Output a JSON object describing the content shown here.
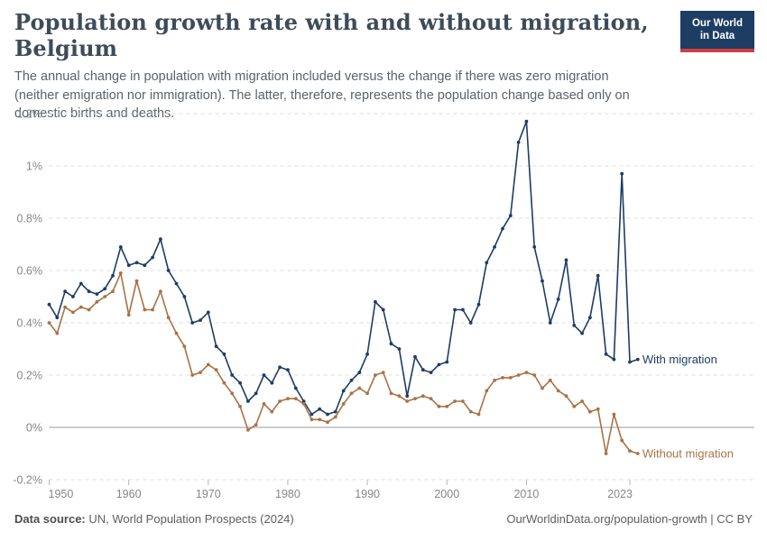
{
  "header": {
    "title": "Population growth rate with and without migration, Belgium",
    "subtitle": "The annual change in population with migration included versus the change if there was zero migration (neither emigration nor immigration). The latter, therefore, represents the population change based only on domestic births and deaths.",
    "logo": {
      "line1": "Our World",
      "line2": "in Data",
      "bg_color": "#1d3d63",
      "bar_color": "#cf3f3f"
    }
  },
  "chart_data": {
    "type": "line",
    "title": "Population growth rate with and without migration, Belgium",
    "xlabel": "",
    "ylabel": "",
    "ylim": [
      -0.2,
      1.2
    ],
    "grid": "horizontal-dashed",
    "legend_position": "end-of-line-labels",
    "zero_line": true,
    "yticks": [
      {
        "v": 1.2,
        "label": "1.2%"
      },
      {
        "v": 1.0,
        "label": "1%"
      },
      {
        "v": 0.8,
        "label": "0.8%"
      },
      {
        "v": 0.6,
        "label": "0.6%"
      },
      {
        "v": 0.4,
        "label": "0.4%"
      },
      {
        "v": 0.2,
        "label": "0.2%"
      },
      {
        "v": 0.0,
        "label": "0%"
      },
      {
        "v": -0.2,
        "label": "-0.2%"
      }
    ],
    "xticks": [
      {
        "v": 1950,
        "label": "1950",
        "align": "start"
      },
      {
        "v": 1960,
        "label": "1960",
        "align": "middle"
      },
      {
        "v": 1970,
        "label": "1970",
        "align": "middle"
      },
      {
        "v": 1980,
        "label": "1980",
        "align": "middle"
      },
      {
        "v": 1990,
        "label": "1990",
        "align": "middle"
      },
      {
        "v": 2000,
        "label": "2000",
        "align": "middle"
      },
      {
        "v": 2010,
        "label": "2010",
        "align": "middle"
      },
      {
        "v": 2023,
        "label": "2023",
        "align": "end"
      }
    ],
    "x": [
      1950,
      1951,
      1952,
      1953,
      1954,
      1955,
      1956,
      1957,
      1958,
      1959,
      1960,
      1961,
      1962,
      1963,
      1964,
      1965,
      1966,
      1967,
      1968,
      1969,
      1970,
      1971,
      1972,
      1973,
      1974,
      1975,
      1976,
      1977,
      1978,
      1979,
      1980,
      1981,
      1982,
      1983,
      1984,
      1985,
      1986,
      1987,
      1988,
      1989,
      1990,
      1991,
      1992,
      1993,
      1994,
      1995,
      1996,
      1997,
      1998,
      1999,
      2000,
      2001,
      2002,
      2003,
      2004,
      2005,
      2006,
      2007,
      2008,
      2009,
      2010,
      2011,
      2012,
      2013,
      2014,
      2015,
      2016,
      2017,
      2018,
      2019,
      2020,
      2021,
      2022,
      2023,
      2024
    ],
    "series": [
      {
        "name": "With migration",
        "color": "#1d3d63",
        "unit": "%",
        "values": [
          0.47,
          0.42,
          0.52,
          0.5,
          0.55,
          0.52,
          0.51,
          0.53,
          0.58,
          0.69,
          0.62,
          0.63,
          0.62,
          0.65,
          0.72,
          0.6,
          0.55,
          0.5,
          0.4,
          0.41,
          0.44,
          0.31,
          0.28,
          0.2,
          0.17,
          0.1,
          0.13,
          0.2,
          0.17,
          0.23,
          0.22,
          0.15,
          0.1,
          0.05,
          0.07,
          0.05,
          0.06,
          0.14,
          0.18,
          0.21,
          0.28,
          0.48,
          0.45,
          0.32,
          0.3,
          0.12,
          0.27,
          0.22,
          0.21,
          0.24,
          0.25,
          0.45,
          0.45,
          0.4,
          0.47,
          0.63,
          0.69,
          0.76,
          0.81,
          1.09,
          1.17,
          0.69,
          0.56,
          0.4,
          0.49,
          0.64,
          0.39,
          0.36,
          0.42,
          0.58,
          0.28,
          0.26,
          0.97,
          0.25,
          0.26
        ]
      },
      {
        "name": "Without migration",
        "color": "#a87346",
        "unit": "%",
        "values": [
          0.4,
          0.36,
          0.46,
          0.44,
          0.46,
          0.45,
          0.48,
          0.5,
          0.52,
          0.59,
          0.43,
          0.56,
          0.45,
          0.45,
          0.52,
          0.42,
          0.36,
          0.31,
          0.2,
          0.21,
          0.24,
          0.22,
          0.17,
          0.13,
          0.08,
          -0.01,
          0.01,
          0.09,
          0.06,
          0.1,
          0.11,
          0.11,
          0.09,
          0.03,
          0.03,
          0.02,
          0.04,
          0.09,
          0.13,
          0.15,
          0.13,
          0.2,
          0.21,
          0.13,
          0.12,
          0.1,
          0.11,
          0.12,
          0.11,
          0.08,
          0.08,
          0.1,
          0.1,
          0.06,
          0.05,
          0.14,
          0.18,
          0.19,
          0.19,
          0.2,
          0.21,
          0.2,
          0.15,
          0.18,
          0.14,
          0.12,
          0.08,
          0.1,
          0.06,
          0.07,
          -0.1,
          0.05,
          -0.05,
          -0.09,
          -0.1
        ]
      }
    ]
  },
  "footer": {
    "source_label": "Data source:",
    "source_text": " UN, World Population Prospects (2024)",
    "link_text": "OurWorldinData.org/population-growth | CC BY"
  }
}
